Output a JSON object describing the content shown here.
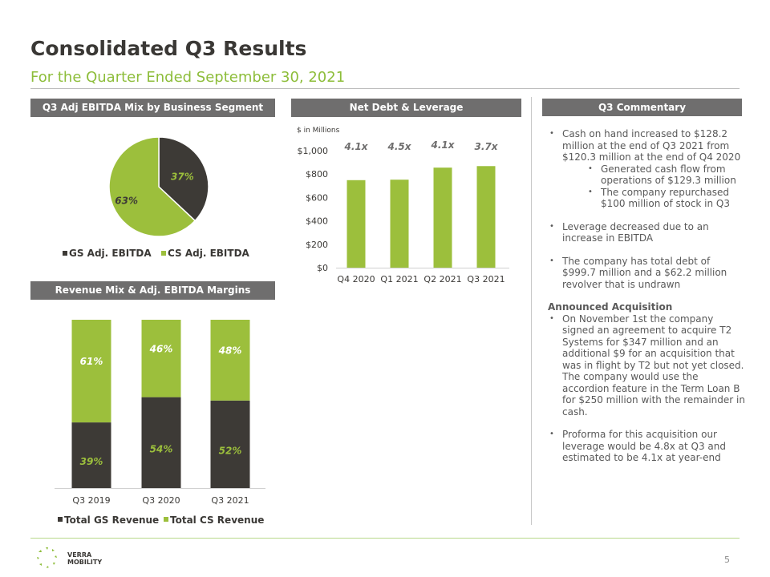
{
  "header": {
    "title": "Consolidated Q3 Results",
    "subtitle": "For the Quarter Ended September 30, 2021"
  },
  "colors": {
    "gs": "#3d3a36",
    "cs": "#9cbf3c",
    "header_bg": "#6f6e6e",
    "accent": "#8dbd3a"
  },
  "panels": {
    "pie_title": "Q3 Adj EBITDA Mix by Business Segment",
    "stack_title": "Revenue Mix & Adj. EBITDA Margins",
    "debt_title": "Net Debt & Leverage",
    "commentary_title": "Q3 Commentary"
  },
  "chart_data": [
    {
      "type": "pie",
      "slices": [
        {
          "name": "GS Adj. EBITDA",
          "value": 37,
          "label": "37%"
        },
        {
          "name": "CS Adj. EBITDA",
          "value": 63,
          "label": "63%"
        }
      ],
      "legend": [
        "GS Adj. EBITDA",
        "CS Adj. EBITDA"
      ],
      "legend_position": "bottom"
    },
    {
      "type": "bar",
      "stacked": true,
      "categories": [
        "Q3 2019",
        "Q3 2020",
        "Q3 2021"
      ],
      "series": [
        {
          "name": "Total GS Revenue",
          "values": [
            39,
            54,
            52
          ],
          "labels": [
            "39%",
            "54%",
            "52%"
          ]
        },
        {
          "name": "Total CS Revenue",
          "values": [
            61,
            46,
            48
          ],
          "labels": [
            "61%",
            "46%",
            "48%"
          ]
        }
      ],
      "legend_position": "bottom"
    },
    {
      "type": "bar",
      "unit_note": "$ in Millions",
      "categories": [
        "Q4 2020",
        "Q1 2021",
        "Q2 2021",
        "Q3 2021"
      ],
      "values": [
        748,
        752,
        855,
        868
      ],
      "leverage_labels": [
        "4.1x",
        "4.5x",
        "4.1x",
        "3.7x"
      ],
      "ylim": [
        0,
        1000
      ],
      "yticks": [
        "$0",
        "$200",
        "$400",
        "$600",
        "$800",
        "$1,000"
      ]
    }
  ],
  "commentary": {
    "b1": "Cash on hand increased to $128.2 million at the end of Q3 2021 from $120.3 million at the end of Q4 2020",
    "b1a": "Generated cash flow from operations of $129.3 million",
    "b1b": "The company repurchased $100 million of stock in Q3",
    "b2": "Leverage decreased due to an increase in EBITDA",
    "b3": "The company has total debt of $999.7 million and a $62.2 million revolver that is undrawn",
    "acq_heading": "Announced Acquisition",
    "b4": "On November 1st the company signed an agreement to acquire T2 Systems for $347 million and an additional $9 for an acquisition that was in flight by T2 but not yet closed.  The company would use the accordion feature in the Term Loan B for $250 million with the remainder in cash.",
    "b5": "Proforma for this acquisition our leverage would be 4.8x at Q3 and estimated to be 4.1x at year-end"
  },
  "footer": {
    "logo_line1": "VERRA",
    "logo_line2": "MOBILITY",
    "page_number": "5"
  }
}
